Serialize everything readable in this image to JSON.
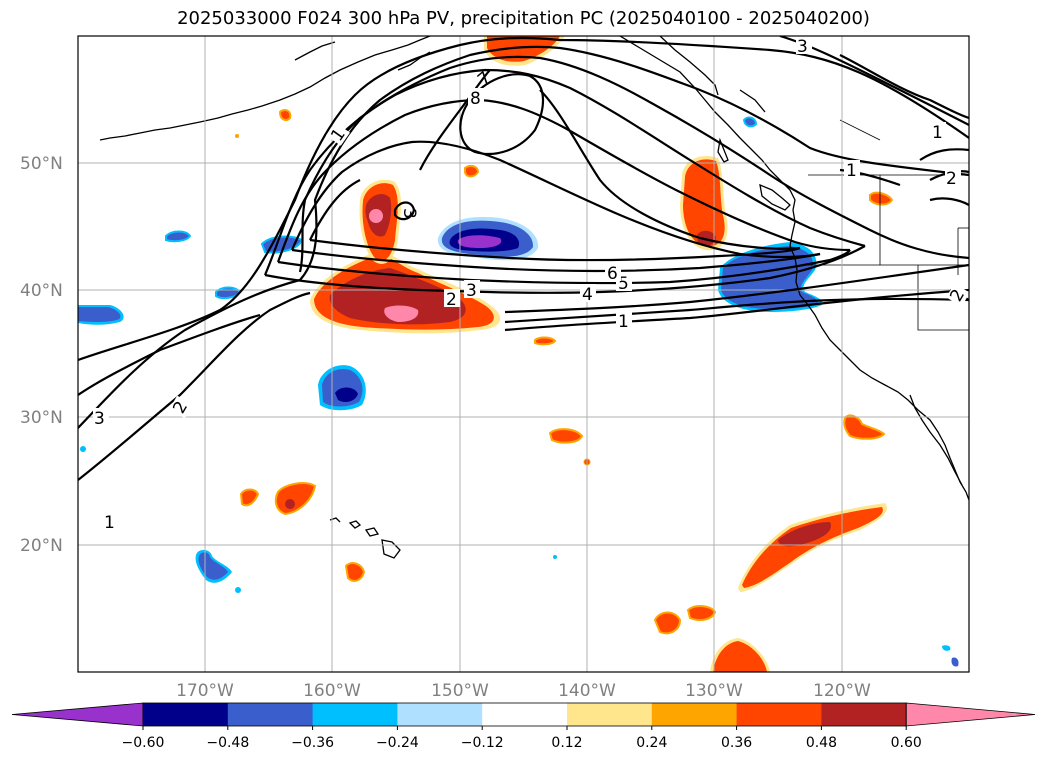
{
  "title": "2025033000 F024 300 hPa PV, precipitation PC (2025040100 - 2025040200)",
  "map": {
    "lat_labels": [
      "50°N",
      "40°N",
      "30°N",
      "20°N"
    ],
    "lon_labels": [
      "170°W",
      "160°W",
      "150°W",
      "140°W",
      "130°W",
      "120°W"
    ],
    "gridlines": true,
    "coastlines": true,
    "borders": true
  },
  "pv_contours": {
    "color": "#000000",
    "labels": [
      "1",
      "2",
      "3",
      "4",
      "5",
      "6",
      "7",
      "8",
      "1",
      "1",
      "2",
      "3",
      "1",
      "2",
      "3",
      "2",
      "1",
      "3"
    ]
  },
  "colorbar": {
    "ticks": [
      "−0.60",
      "−0.48",
      "−0.36",
      "−0.24",
      "−0.12",
      "0.12",
      "0.24",
      "0.36",
      "0.48",
      "0.60"
    ],
    "colors": [
      "#9932cc",
      "#00008b",
      "#3a5fcd",
      "#00bfff",
      "#b0e0ff",
      "#ffffff",
      "#ffe68c",
      "#ffa500",
      "#ff4500",
      "#b22222",
      "#ff88aa"
    ],
    "extend": "both"
  }
}
